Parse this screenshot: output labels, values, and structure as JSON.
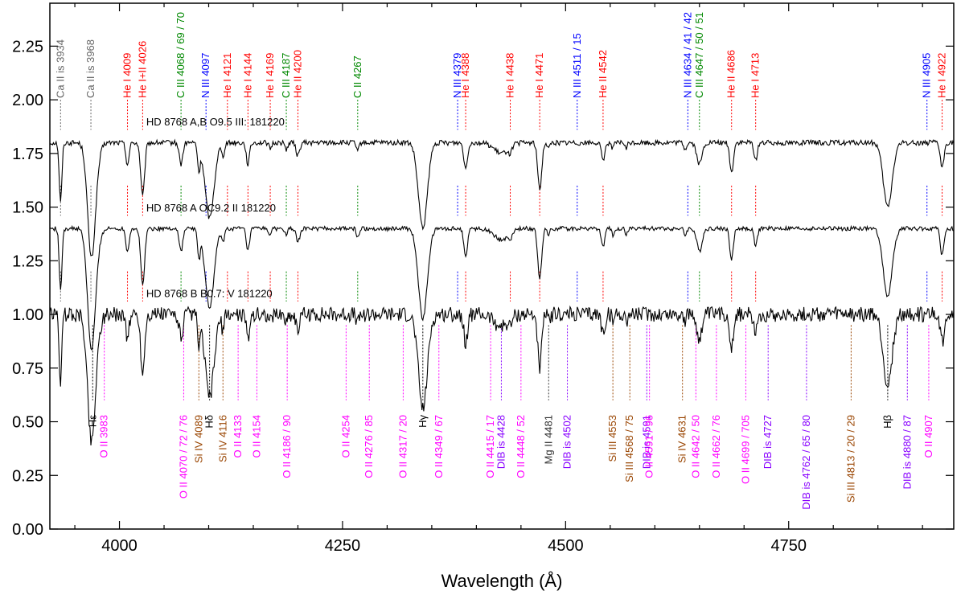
{
  "chart_data": {
    "type": "line",
    "title": "",
    "xlabel": "Wavelength (Å)",
    "ylabel": "",
    "xlim": [
      3922,
      4935
    ],
    "ylim": [
      0.0,
      2.45
    ],
    "x_ticks": [
      4000,
      4250,
      4500,
      4750
    ],
    "x_tick_labels": [
      "4000",
      "4250",
      "4500",
      "4750"
    ],
    "y_ticks": [
      0.0,
      0.25,
      0.5,
      0.75,
      1.0,
      1.25,
      1.5,
      1.75,
      2.0,
      2.25
    ],
    "y_tick_labels": [
      "0.00",
      "0.25",
      "0.50",
      "0.75",
      "1.00",
      "1.25",
      "1.50",
      "1.75",
      "2.00",
      "2.25"
    ],
    "grid": false,
    "series": [
      {
        "name": "HD 8768 A,B    O9.5 III: 181220",
        "label_x": 4030,
        "label_y": 1.88,
        "continuum": 1.8,
        "noise": 0.012,
        "depth_scale": 1.0
      },
      {
        "name": "HD 8768 A    OC9.2 II 181220",
        "label_x": 4030,
        "label_y": 1.48,
        "continuum": 1.4,
        "noise": 0.01,
        "depth_scale": 1.05
      },
      {
        "name": "HD 8768 B    B0.7: V 181220",
        "label_x": 4030,
        "label_y": 1.08,
        "continuum": 1.0,
        "noise": 0.035,
        "depth_scale": 1.1
      }
    ],
    "absorption_lines": [
      {
        "wl": 3934,
        "depth": 0.28,
        "width": 1.5
      },
      {
        "wl": 3968,
        "depth": 0.3,
        "width": 4
      },
      {
        "wl": 3970,
        "depth": 0.25,
        "width": 5
      },
      {
        "wl": 4009,
        "depth": 0.1,
        "width": 1.8
      },
      {
        "wl": 4026,
        "depth": 0.25,
        "width": 2.2
      },
      {
        "wl": 4069,
        "depth": 0.1,
        "width": 2
      },
      {
        "wl": 4089,
        "depth": 0.12,
        "width": 1.5
      },
      {
        "wl": 4101,
        "depth": 0.35,
        "width": 5
      },
      {
        "wl": 4116,
        "depth": 0.06,
        "width": 1.5
      },
      {
        "wl": 4144,
        "depth": 0.1,
        "width": 1.8
      },
      {
        "wl": 4169,
        "depth": 0.03,
        "width": 1.5
      },
      {
        "wl": 4187,
        "depth": 0.03,
        "width": 1.5
      },
      {
        "wl": 4200,
        "depth": 0.06,
        "width": 2
      },
      {
        "wl": 4267,
        "depth": 0.04,
        "width": 1.5
      },
      {
        "wl": 4340,
        "depth": 0.4,
        "width": 5
      },
      {
        "wl": 4388,
        "depth": 0.12,
        "width": 2
      },
      {
        "wl": 4428,
        "depth": 0.05,
        "width": 8
      },
      {
        "wl": 4438,
        "depth": 0.03,
        "width": 1.5
      },
      {
        "wl": 4471,
        "depth": 0.22,
        "width": 2.2
      },
      {
        "wl": 4481,
        "depth": 0.03,
        "width": 1.2
      },
      {
        "wl": 4542,
        "depth": 0.08,
        "width": 2
      },
      {
        "wl": 4553,
        "depth": 0.03,
        "width": 1.2
      },
      {
        "wl": 4568,
        "depth": 0.03,
        "width": 1.2
      },
      {
        "wl": 4634,
        "depth": 0.03,
        "width": 1.5
      },
      {
        "wl": 4650,
        "depth": 0.1,
        "width": 3
      },
      {
        "wl": 4686,
        "depth": 0.14,
        "width": 2
      },
      {
        "wl": 4713,
        "depth": 0.08,
        "width": 1.8
      },
      {
        "wl": 4861,
        "depth": 0.3,
        "width": 5
      },
      {
        "wl": 4922,
        "depth": 0.12,
        "width": 2
      }
    ],
    "top_labels": [
      {
        "text": "Ca II is 3934",
        "wl": 3934,
        "color": "#666666"
      },
      {
        "text": "Ca II is 3968",
        "wl": 3968,
        "color": "#666666"
      },
      {
        "text": "He I 4009",
        "wl": 4009,
        "color": "#ff0000"
      },
      {
        "text": "He I+II 4026",
        "wl": 4026,
        "color": "#ff0000"
      },
      {
        "text": "C III 4068 / 69 / 70",
        "wl": 4069,
        "color": "#008800"
      },
      {
        "text": "N III 4097",
        "wl": 4097,
        "color": "#0000ff"
      },
      {
        "text": "He I 4121",
        "wl": 4121,
        "color": "#ff0000"
      },
      {
        "text": "He I 4144",
        "wl": 4144,
        "color": "#ff0000"
      },
      {
        "text": "He I 4169",
        "wl": 4169,
        "color": "#ff0000"
      },
      {
        "text": "C III 4187",
        "wl": 4187,
        "color": "#008800"
      },
      {
        "text": "He II 4200",
        "wl": 4200,
        "color": "#ff0000"
      },
      {
        "text": "C II 4267",
        "wl": 4267,
        "color": "#008800"
      },
      {
        "text": "N III 4379",
        "wl": 4379,
        "color": "#0000ff"
      },
      {
        "text": "He I 4388",
        "wl": 4388,
        "color": "#ff0000"
      },
      {
        "text": "He I 4438",
        "wl": 4438,
        "color": "#ff0000"
      },
      {
        "text": "He I 4471",
        "wl": 4471,
        "color": "#ff0000"
      },
      {
        "text": "N III 4511 / 15",
        "wl": 4513,
        "color": "#0000ff"
      },
      {
        "text": "He II 4542",
        "wl": 4542,
        "color": "#ff0000"
      },
      {
        "text": "N III 4634 / 41 / 42",
        "wl": 4637,
        "color": "#0000ff"
      },
      {
        "text": "C III 4647 / 50 / 51",
        "wl": 4650,
        "color": "#008800"
      },
      {
        "text": "He II 4686",
        "wl": 4686,
        "color": "#ff0000"
      },
      {
        "text": "He I 4713",
        "wl": 4713,
        "color": "#ff0000"
      },
      {
        "text": "N III 4905",
        "wl": 4905,
        "color": "#0000ff"
      },
      {
        "text": "He I 4922",
        "wl": 4922,
        "color": "#ff0000"
      }
    ],
    "bottom_labels": [
      {
        "text": "Hε",
        "wl": 3970,
        "color": "#000000"
      },
      {
        "text": "O II 3983",
        "wl": 3983,
        "color": "#ff00ff"
      },
      {
        "text": "O II 4070 / 72 / 76",
        "wl": 4072,
        "color": "#ff00ff"
      },
      {
        "text": "Si IV 4089",
        "wl": 4089,
        "color": "#994400"
      },
      {
        "text": "Hδ",
        "wl": 4101,
        "color": "#000000"
      },
      {
        "text": "Si IV 4116",
        "wl": 4116,
        "color": "#994400"
      },
      {
        "text": "O II 4133",
        "wl": 4133,
        "color": "#ff00ff"
      },
      {
        "text": "O II 4154",
        "wl": 4154,
        "color": "#ff00ff"
      },
      {
        "text": "O II 4186 / 90",
        "wl": 4188,
        "color": "#ff00ff"
      },
      {
        "text": "O II 4254",
        "wl": 4254,
        "color": "#ff00ff"
      },
      {
        "text": "O II 4276 / 85",
        "wl": 4280,
        "color": "#ff00ff"
      },
      {
        "text": "O II 4317 / 20",
        "wl": 4318,
        "color": "#ff00ff"
      },
      {
        "text": "Hγ",
        "wl": 4340,
        "color": "#000000"
      },
      {
        "text": "O II 4349 / 67",
        "wl": 4358,
        "color": "#ff00ff"
      },
      {
        "text": "O II 4415 / 17",
        "wl": 4416,
        "color": "#ff00ff"
      },
      {
        "text": "DIB is 4428",
        "wl": 4428,
        "color": "#8800ff"
      },
      {
        "text": "O II 4448 / 52",
        "wl": 4450,
        "color": "#ff00ff"
      },
      {
        "text": "Mg II 4481",
        "wl": 4481,
        "color": "#333333"
      },
      {
        "text": "DIB is 4502",
        "wl": 4502,
        "color": "#8800ff"
      },
      {
        "text": "Si III 4553",
        "wl": 4553,
        "color": "#994400"
      },
      {
        "text": "Si III 4568 / 75",
        "wl": 4572,
        "color": "#994400"
      },
      {
        "text": "DIB is 4591",
        "wl": 4591,
        "color": "#8800ff"
      },
      {
        "text": "O II 4591 / 96",
        "wl": 4594,
        "color": "#ff00ff"
      },
      {
        "text": "Si IV 4631",
        "wl": 4631,
        "color": "#994400"
      },
      {
        "text": "O II 4642 / 50",
        "wl": 4646,
        "color": "#ff00ff"
      },
      {
        "text": "O II 4662 / 76",
        "wl": 4669,
        "color": "#ff00ff"
      },
      {
        "text": "O II 4699 / 705",
        "wl": 4702,
        "color": "#ff00ff"
      },
      {
        "text": "DIB is 4727",
        "wl": 4727,
        "color": "#8800ff"
      },
      {
        "text": "DIB is 4762 / 65 / 80",
        "wl": 4770,
        "color": "#8800ff"
      },
      {
        "text": "Si III 4813 / 20 / 29",
        "wl": 4820,
        "color": "#994400"
      },
      {
        "text": "Hβ",
        "wl": 4861,
        "color": "#000000"
      },
      {
        "text": "DIB is 4880 / 87",
        "wl": 4883,
        "color": "#8800ff"
      },
      {
        "text": "O II 4907",
        "wl": 4907,
        "color": "#ff00ff"
      }
    ]
  }
}
